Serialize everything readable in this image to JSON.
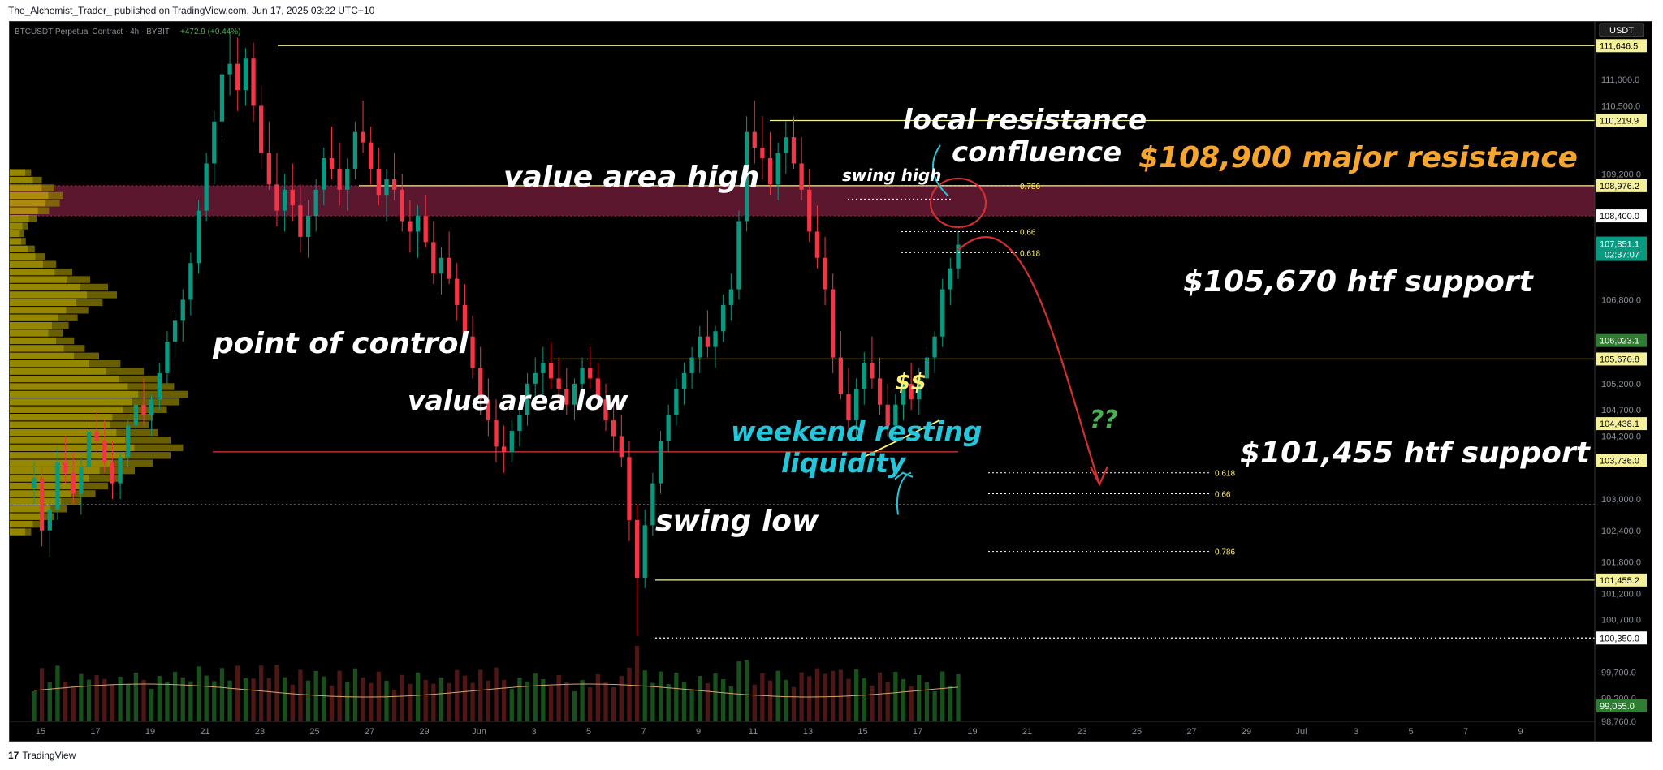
{
  "header": {
    "text": "The_Alchemist_Trader_ published on TradingView.com, Jun 17, 2025 03:22 UTC+10"
  },
  "footer": {
    "logo_mark": "17",
    "logo_text": "TradingView"
  },
  "chart_data": {
    "type": "candlestick",
    "symbol_line": "BTCUSDT Perpetual Contract · 4h · BYBIT",
    "change_text": "+472.9 (+0.44%)",
    "currency_label": "USDT",
    "ylim": [
      98760,
      112100
    ],
    "price_axis_ticks": [
      "111,000.0",
      "110,500.0",
      "109,200.0",
      "108,400.0",
      "106,800.0",
      "105,200.0",
      "104,700.0",
      "104,200.0",
      "103,000.0",
      "102,400.0",
      "101,800.0",
      "101,200.0",
      "100,700.0",
      "99,700.0",
      "99,200.0",
      "98,760.0"
    ],
    "price_badges": [
      {
        "label": "111,646.5",
        "value": 111646.5,
        "color": "#f5f19a"
      },
      {
        "label": "110,219.9",
        "value": 110219.9,
        "color": "#f5f19a"
      },
      {
        "label": "108,976.2",
        "value": 108976.2,
        "color": "#f5f19a"
      },
      {
        "label": "108,400.0",
        "value": 108400.0,
        "color": "#ffffff"
      },
      {
        "label": "106,023.1",
        "value": 106023.1,
        "color": "#2e7d32"
      },
      {
        "label": "105,670.8",
        "value": 105670.8,
        "color": "#f5f19a"
      },
      {
        "label": "104,438.1",
        "value": 104438.1,
        "color": "#f5f19a"
      },
      {
        "label": "103,736.0",
        "value": 103736.0,
        "color": "#f5f19a"
      },
      {
        "label": "101,455.2",
        "value": 101455.2,
        "color": "#f5f19a"
      },
      {
        "label": "100,350.0",
        "value": 100350.0,
        "color": "#ffffff"
      },
      {
        "label": "99,055.0",
        "value": 99055.0,
        "color": "#2e7d32"
      }
    ],
    "last_price": {
      "label": "107,851.1",
      "countdown": "02:37:07",
      "value": 107851.1,
      "color": "#089981"
    },
    "x_axis_labels": [
      "15",
      "17",
      "19",
      "21",
      "23",
      "25",
      "27",
      "29",
      "Jun",
      "3",
      "5",
      "7",
      "9",
      "11",
      "13",
      "15",
      "17",
      "19",
      "21",
      "23",
      "25",
      "27",
      "29",
      "Jul",
      "3",
      "5",
      "7",
      "9"
    ],
    "candles": [
      [
        103200,
        103700,
        102900,
        103400
      ],
      [
        103400,
        103600,
        102100,
        102400
      ],
      [
        102400,
        103000,
        101900,
        102800
      ],
      [
        102800,
        104000,
        102600,
        103700
      ],
      [
        103700,
        104200,
        103300,
        103500
      ],
      [
        103500,
        103900,
        102900,
        103100
      ],
      [
        103100,
        103800,
        102700,
        103600
      ],
      [
        103600,
        104600,
        103400,
        104300
      ],
      [
        104300,
        104700,
        103900,
        104100
      ],
      [
        104100,
        104500,
        103500,
        103700
      ],
      [
        103700,
        104100,
        103000,
        103300
      ],
      [
        103300,
        103900,
        103000,
        103800
      ],
      [
        103800,
        104500,
        103600,
        104400
      ],
      [
        104400,
        105000,
        104100,
        104800
      ],
      [
        104800,
        105300,
        104400,
        104600
      ],
      [
        104600,
        105000,
        104200,
        104900
      ],
      [
        104900,
        105600,
        104700,
        105400
      ],
      [
        105400,
        106200,
        105200,
        106000
      ],
      [
        106000,
        106600,
        105700,
        106400
      ],
      [
        106400,
        107000,
        106000,
        106800
      ],
      [
        106800,
        107700,
        106500,
        107500
      ],
      [
        107500,
        108700,
        107300,
        108500
      ],
      [
        108500,
        109600,
        108300,
        109400
      ],
      [
        109400,
        110400,
        109000,
        110200
      ],
      [
        110200,
        111400,
        109900,
        111100
      ],
      [
        111100,
        111900,
        110700,
        111300
      ],
      [
        111300,
        111800,
        110400,
        110800
      ],
      [
        110800,
        111600,
        110500,
        111400
      ],
      [
        111400,
        111700,
        110200,
        110500
      ],
      [
        110500,
        110900,
        109300,
        109600
      ],
      [
        109600,
        110200,
        108900,
        109000
      ],
      [
        109000,
        109600,
        108200,
        108500
      ],
      [
        108500,
        109200,
        108100,
        108900
      ],
      [
        108900,
        109400,
        108300,
        108600
      ],
      [
        108600,
        109000,
        107700,
        108000
      ],
      [
        108000,
        108700,
        107600,
        108400
      ],
      [
        108400,
        109100,
        108100,
        108900
      ],
      [
        108900,
        109700,
        108600,
        109500
      ],
      [
        109500,
        110100,
        109100,
        109300
      ],
      [
        109300,
        109800,
        108600,
        108900
      ],
      [
        108900,
        109500,
        108500,
        109300
      ],
      [
        109300,
        110200,
        109100,
        110000
      ],
      [
        110000,
        110600,
        109600,
        109800
      ],
      [
        109800,
        110100,
        109000,
        109300
      ],
      [
        109300,
        109700,
        108600,
        108800
      ],
      [
        108800,
        109300,
        108300,
        109100
      ],
      [
        109100,
        109600,
        108700,
        108900
      ],
      [
        108900,
        109200,
        108100,
        108300
      ],
      [
        108300,
        108700,
        107700,
        108100
      ],
      [
        108100,
        108600,
        107600,
        108400
      ],
      [
        108400,
        108800,
        107800,
        107900
      ],
      [
        107900,
        108300,
        107100,
        107300
      ],
      [
        107300,
        107800,
        106900,
        107600
      ],
      [
        107600,
        108100,
        107100,
        107200
      ],
      [
        107200,
        107500,
        106400,
        106700
      ],
      [
        106700,
        107100,
        105900,
        106100
      ],
      [
        106100,
        106500,
        105300,
        105500
      ],
      [
        105500,
        105900,
        104600,
        104900
      ],
      [
        104900,
        105300,
        104200,
        104500
      ],
      [
        104500,
        104900,
        103700,
        104000
      ],
      [
        104000,
        104400,
        103500,
        103900
      ],
      [
        103900,
        104500,
        103700,
        104300
      ],
      [
        104300,
        104800,
        104000,
        104600
      ],
      [
        104600,
        105400,
        104400,
        105200
      ],
      [
        105200,
        105700,
        104900,
        105400
      ],
      [
        105400,
        105900,
        105000,
        105600
      ],
      [
        105600,
        106000,
        105100,
        105300
      ],
      [
        105300,
        105700,
        104800,
        105100
      ],
      [
        105100,
        105500,
        104600,
        104800
      ],
      [
        104800,
        105300,
        104500,
        105200
      ],
      [
        105200,
        105700,
        104900,
        105500
      ],
      [
        105500,
        105900,
        105100,
        105300
      ],
      [
        105300,
        105600,
        104700,
        104900
      ],
      [
        104900,
        105200,
        104300,
        104500
      ],
      [
        104500,
        104900,
        103900,
        104200
      ],
      [
        104200,
        104600,
        103600,
        103800
      ],
      [
        103800,
        104100,
        102200,
        102600
      ],
      [
        102600,
        102900,
        100400,
        101500
      ],
      [
        101500,
        102800,
        101300,
        102500
      ],
      [
        102500,
        103500,
        102300,
        103300
      ],
      [
        103300,
        104300,
        103100,
        104100
      ],
      [
        104100,
        104800,
        103900,
        104600
      ],
      [
        104600,
        105300,
        104400,
        105100
      ],
      [
        105100,
        105600,
        104800,
        105400
      ],
      [
        105400,
        105900,
        105100,
        105700
      ],
      [
        105700,
        106300,
        105400,
        106100
      ],
      [
        106100,
        106600,
        105700,
        105900
      ],
      [
        105900,
        106300,
        105500,
        106200
      ],
      [
        106200,
        106900,
        106000,
        106700
      ],
      [
        106700,
        107300,
        106400,
        107000
      ],
      [
        107000,
        108500,
        106800,
        108300
      ],
      [
        108300,
        110300,
        108100,
        110000
      ],
      [
        110000,
        110600,
        109400,
        109700
      ],
      [
        109700,
        110300,
        109100,
        109500
      ],
      [
        109500,
        110000,
        108800,
        109000
      ],
      [
        109000,
        109800,
        108700,
        109600
      ],
      [
        109600,
        110200,
        109200,
        109900
      ],
      [
        109900,
        110300,
        109300,
        109400
      ],
      [
        109400,
        109900,
        108700,
        108900
      ],
      [
        108900,
        109300,
        107900,
        108100
      ],
      [
        108100,
        108600,
        107400,
        107600
      ],
      [
        107600,
        108000,
        106700,
        107000
      ],
      [
        107000,
        107300,
        105400,
        105700
      ],
      [
        105700,
        106200,
        104900,
        105000
      ],
      [
        105000,
        105500,
        104300,
        104500
      ],
      [
        104500,
        105300,
        104200,
        105100
      ],
      [
        105100,
        105800,
        104800,
        105600
      ],
      [
        105600,
        106100,
        105100,
        105300
      ],
      [
        105300,
        105700,
        104600,
        104800
      ],
      [
        104800,
        105200,
        104200,
        104400
      ],
      [
        104400,
        105000,
        104100,
        104800
      ],
      [
        104800,
        105400,
        104500,
        105200
      ],
      [
        105200,
        105600,
        104700,
        104900
      ],
      [
        104900,
        105500,
        104600,
        105300
      ],
      [
        105300,
        105900,
        105000,
        105700
      ],
      [
        105700,
        106200,
        105400,
        106100
      ],
      [
        106100,
        107200,
        105900,
        107000
      ],
      [
        107000,
        107600,
        106700,
        107400
      ],
      [
        107400,
        108100,
        107200,
        107851
      ]
    ],
    "volume_profile": [
      0.12,
      0.18,
      0.25,
      0.3,
      0.28,
      0.22,
      0.15,
      0.1,
      0.08,
      0.09,
      0.14,
      0.2,
      0.26,
      0.35,
      0.45,
      0.55,
      0.6,
      0.52,
      0.44,
      0.38,
      0.33,
      0.3,
      0.36,
      0.42,
      0.5,
      0.62,
      0.75,
      0.85,
      0.92,
      1.0,
      0.95,
      0.88,
      0.8,
      0.78,
      0.83,
      0.9,
      0.97,
      0.9,
      0.8,
      0.7,
      0.62,
      0.55,
      0.48,
      0.4,
      0.32,
      0.25,
      0.18,
      0.12
    ],
    "levels": [
      {
        "value": 111646.5,
        "color": "#f5f19a",
        "style": "solid"
      },
      {
        "value": 110219.9,
        "color": "#f5f19a",
        "style": "solid"
      },
      {
        "value": 108976.2,
        "color": "#f5f19a",
        "style": "solid"
      },
      {
        "value": 105670.8,
        "color": "#f5f19a",
        "style": "solid"
      },
      {
        "value": 101455.2,
        "color": "#f5f19a",
        "style": "solid"
      },
      {
        "value": 100350.0,
        "color": "#ffffff",
        "style": "dotted"
      },
      {
        "value": 103900.0,
        "color": "#e53935",
        "style": "solid"
      }
    ],
    "fib_left": [
      {
        "label": "0.786",
        "value": 108976
      },
      {
        "label": "0.66",
        "value": 108100
      },
      {
        "label": "0.618",
        "value": 107700
      }
    ],
    "fib_right": [
      {
        "label": "0.618",
        "value": 103500
      },
      {
        "label": "0.66",
        "value": 103100
      },
      {
        "label": "0.786",
        "value": 102000
      }
    ],
    "annotations": {
      "value_area_high": "value area high",
      "point_of_control": "point of control",
      "value_area_low": "value area low",
      "swing_low": "swing low",
      "swing_high": "swing high",
      "local_resistance": "local resistance",
      "confluence": "confluence",
      "major_resistance": "$108,900 major resistance",
      "htf_support_upper": "$105,670 htf support",
      "htf_support_lower": "$101,455 htf support",
      "weekend_resting": "weekend resting",
      "liquidity": "liquidity",
      "dollar_signs": "$$",
      "question_marks": "??"
    },
    "colors": {
      "up": "#089981",
      "down": "#f23645",
      "vah_band": "#7a1f3d",
      "annotation_white": "#ffffff",
      "annotation_orange": "#f7a531",
      "annotation_cyan": "#26c6da",
      "annotation_yellow": "#fff176",
      "annotation_green": "#4caf50",
      "arrow_red": "#d32f2f"
    }
  }
}
